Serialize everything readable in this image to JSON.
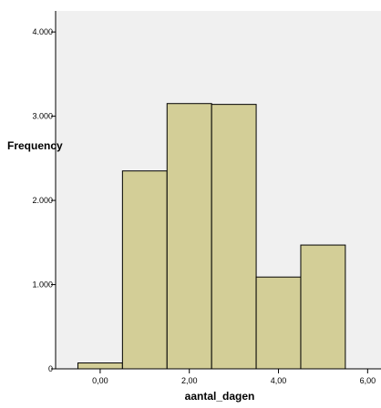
{
  "chart_data": {
    "type": "bar",
    "title": "",
    "xlabel": "aantal_dagen",
    "ylabel": "Frequency",
    "xlim": [
      -1.0,
      6.3
    ],
    "ylim": [
      0,
      4250
    ],
    "x_ticks": [
      {
        "value": 0,
        "label": "0,00"
      },
      {
        "value": 2,
        "label": "2,00"
      },
      {
        "value": 4,
        "label": "4,00"
      },
      {
        "value": 6,
        "label": "6,00"
      }
    ],
    "y_ticks": [
      {
        "value": 0,
        "label": "0"
      },
      {
        "value": 1000,
        "label": "1.000"
      },
      {
        "value": 2000,
        "label": "2.000"
      },
      {
        "value": 3000,
        "label": "3.000"
      },
      {
        "value": 4000,
        "label": "4.000"
      }
    ],
    "bins": [
      {
        "start": -0.5,
        "end": 0.5,
        "value": 70
      },
      {
        "start": 0.5,
        "end": 1.5,
        "value": 2350
      },
      {
        "start": 1.5,
        "end": 2.5,
        "value": 3150
      },
      {
        "start": 2.5,
        "end": 3.5,
        "value": 3140
      },
      {
        "start": 3.5,
        "end": 4.5,
        "value": 1090
      },
      {
        "start": 4.5,
        "end": 5.5,
        "value": 1470
      }
    ],
    "grid": false,
    "colors": {
      "plot_background": "#f0f0f0",
      "bar_fill": "#d3ce97",
      "bar_stroke": "#000000"
    }
  }
}
